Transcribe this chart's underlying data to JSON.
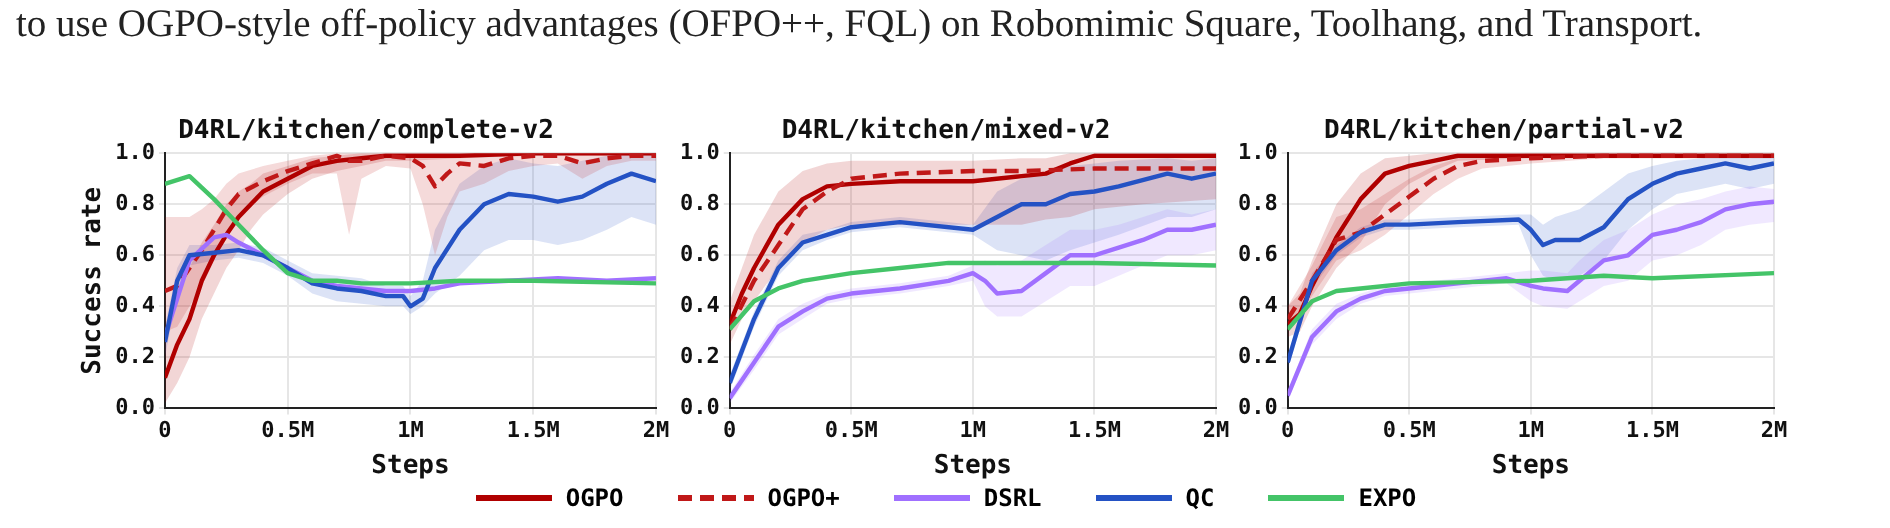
{
  "chart_data": [
    {
      "type": "line",
      "title": "D4RL/kitchen/complete-v2",
      "xlabel": "Steps",
      "ylabel": "Success rate",
      "legend": "bottom",
      "annotations": [
        "to use OGPO-style off-policy advantages (OFPO++, FQL) on Robomimic Square, Toolhang, and Transport."
      ],
      "xlim": [
        0,
        2
      ],
      "xticks": [
        {
          "value": 0,
          "label": "0"
        },
        {
          "value": 0.5,
          "label": "0.5M"
        },
        {
          "value": 1,
          "label": "1M"
        },
        {
          "value": 1.5,
          "label": "1.5M"
        },
        {
          "value": 2,
          "label": "2M"
        }
      ],
      "ylim": [
        0,
        1
      ],
      "yticks": [
        {
          "value": 0,
          "label": "0.0"
        },
        {
          "value": 0.2,
          "label": "0.2"
        },
        {
          "value": 0.4,
          "label": "0.4"
        },
        {
          "value": 0.6,
          "label": "0.6"
        },
        {
          "value": 0.8,
          "label": "0.8"
        },
        {
          "value": 1,
          "label": "1.0"
        }
      ],
      "grid": true,
      "marker": "none",
      "series": [
        {
          "name": "OGPO",
          "color": "#b00000",
          "x": [
            0,
            0.05,
            0.1,
            0.15,
            0.2,
            0.25,
            0.3,
            0.35,
            0.4,
            0.5,
            0.6,
            0.7,
            0.8,
            0.9,
            1,
            1.2,
            1.5,
            2
          ],
          "values": [
            0.12,
            0.25,
            0.35,
            0.5,
            0.6,
            0.68,
            0.75,
            0.8,
            0.85,
            0.9,
            0.95,
            0.97,
            0.98,
            0.99,
            0.99,
            0.99,
            1.0,
            1.0
          ],
          "lower": [
            0.02,
            0.1,
            0.2,
            0.35,
            0.45,
            0.55,
            0.62,
            0.7,
            0.76,
            0.84,
            0.9,
            0.93,
            0.95,
            0.97,
            0.97,
            0.98,
            0.99,
            0.99
          ],
          "upper": [
            0.3,
            0.45,
            0.55,
            0.65,
            0.72,
            0.8,
            0.85,
            0.88,
            0.92,
            0.95,
            0.98,
            0.99,
            1.0,
            1.0,
            1.0,
            1.0,
            1.0,
            1.0
          ]
        },
        {
          "name": "OGPO+",
          "color": "#c01818",
          "line_style": "dashed",
          "x": [
            0,
            0.05,
            0.1,
            0.15,
            0.2,
            0.25,
            0.3,
            0.4,
            0.5,
            0.6,
            0.7,
            0.75,
            0.8,
            0.9,
            1,
            1.05,
            1.1,
            1.15,
            1.2,
            1.3,
            1.4,
            1.5,
            1.6,
            1.7,
            1.8,
            1.9,
            2
          ],
          "values": [
            0.46,
            0.48,
            0.55,
            0.62,
            0.7,
            0.78,
            0.84,
            0.89,
            0.93,
            0.96,
            0.99,
            0.97,
            0.97,
            0.99,
            0.98,
            0.95,
            0.87,
            0.92,
            0.96,
            0.95,
            0.98,
            0.99,
            0.99,
            0.96,
            0.98,
            0.99,
            0.99
          ],
          "lower": [
            0.3,
            0.32,
            0.4,
            0.48,
            0.58,
            0.68,
            0.76,
            0.83,
            0.88,
            0.92,
            0.92,
            0.68,
            0.9,
            0.95,
            0.94,
            0.8,
            0.6,
            0.75,
            0.85,
            0.88,
            0.93,
            0.95,
            0.96,
            0.9,
            0.95,
            0.97,
            0.97
          ],
          "upper": [
            0.75,
            0.75,
            0.75,
            0.78,
            0.82,
            0.88,
            0.92,
            0.95,
            0.97,
            0.99,
            1.0,
            1.0,
            1.0,
            1.0,
            1.0,
            1.0,
            1.0,
            1.0,
            1.0,
            1.0,
            1.0,
            1.0,
            1.0,
            1.0,
            1.0,
            1.0,
            1.0
          ]
        },
        {
          "name": "DSRL",
          "color": "#a070ff",
          "x": [
            0,
            0.1,
            0.2,
            0.25,
            0.3,
            0.4,
            0.5,
            0.6,
            0.7,
            0.8,
            0.9,
            1,
            1.1,
            1.2,
            1.4,
            1.6,
            1.8,
            2
          ],
          "values": [
            0.28,
            0.58,
            0.67,
            0.68,
            0.65,
            0.6,
            0.55,
            0.5,
            0.48,
            0.47,
            0.46,
            0.46,
            0.47,
            0.49,
            0.5,
            0.51,
            0.5,
            0.51
          ]
        },
        {
          "name": "QC",
          "color": "#2452c4",
          "x": [
            0,
            0.05,
            0.1,
            0.2,
            0.3,
            0.4,
            0.5,
            0.6,
            0.7,
            0.8,
            0.9,
            0.97,
            1,
            1.05,
            1.1,
            1.2,
            1.3,
            1.4,
            1.5,
            1.6,
            1.7,
            1.8,
            1.9,
            2
          ],
          "values": [
            0.26,
            0.5,
            0.6,
            0.61,
            0.62,
            0.6,
            0.55,
            0.49,
            0.47,
            0.46,
            0.44,
            0.44,
            0.4,
            0.43,
            0.55,
            0.7,
            0.8,
            0.84,
            0.83,
            0.81,
            0.83,
            0.88,
            0.92,
            0.89
          ],
          "lower": [
            0.2,
            0.45,
            0.56,
            0.58,
            0.59,
            0.57,
            0.52,
            0.45,
            0.42,
            0.41,
            0.4,
            0.4,
            0.37,
            0.4,
            0.45,
            0.52,
            0.62,
            0.66,
            0.66,
            0.64,
            0.66,
            0.7,
            0.75,
            0.72
          ],
          "upper": [
            0.32,
            0.55,
            0.64,
            0.64,
            0.65,
            0.63,
            0.58,
            0.53,
            0.52,
            0.51,
            0.48,
            0.48,
            0.44,
            0.5,
            0.7,
            0.88,
            0.95,
            0.98,
            0.96,
            0.95,
            0.97,
            0.99,
            1.0,
            1.0
          ]
        },
        {
          "name": "EXPO",
          "color": "#44c468",
          "x": [
            0,
            0.1,
            0.2,
            0.3,
            0.4,
            0.5,
            0.6,
            0.7,
            0.8,
            1,
            1.2,
            1.5,
            2
          ],
          "values": [
            0.88,
            0.91,
            0.82,
            0.72,
            0.62,
            0.53,
            0.5,
            0.5,
            0.49,
            0.49,
            0.5,
            0.5,
            0.49
          ]
        }
      ]
    },
    {
      "type": "line",
      "title": "D4RL/kitchen/mixed-v2",
      "xlabel": "Steps",
      "xlim": [
        0,
        2
      ],
      "xticks": [
        {
          "value": 0,
          "label": "0"
        },
        {
          "value": 0.5,
          "label": "0.5M"
        },
        {
          "value": 1,
          "label": "1M"
        },
        {
          "value": 1.5,
          "label": "1.5M"
        },
        {
          "value": 2,
          "label": "2M"
        }
      ],
      "ylim": [
        0,
        1
      ],
      "yticks": [
        {
          "value": 0,
          "label": "0.0"
        },
        {
          "value": 0.2,
          "label": "0.2"
        },
        {
          "value": 0.4,
          "label": "0.4"
        },
        {
          "value": 0.6,
          "label": "0.6"
        },
        {
          "value": 0.8,
          "label": "0.8"
        },
        {
          "value": 1,
          "label": "1.0"
        }
      ],
      "grid": true,
      "marker": "none",
      "series": [
        {
          "color": "#b00000",
          "x": [
            0,
            0.05,
            0.1,
            0.2,
            0.3,
            0.4,
            0.5,
            0.7,
            1,
            1.2,
            1.3,
            1.4,
            1.5,
            1.7,
            2
          ],
          "values": [
            0.33,
            0.45,
            0.55,
            0.72,
            0.82,
            0.87,
            0.88,
            0.89,
            0.89,
            0.91,
            0.92,
            0.96,
            0.99,
            0.99,
            0.99
          ],
          "lower": [
            0.25,
            0.35,
            0.42,
            0.55,
            0.65,
            0.7,
            0.72,
            0.72,
            0.72,
            0.72,
            0.74,
            0.75,
            0.78,
            0.8,
            0.82
          ],
          "upper": [
            0.42,
            0.55,
            0.68,
            0.85,
            0.93,
            0.96,
            0.97,
            0.97,
            0.97,
            0.98,
            0.98,
            1.0,
            1.0,
            1.0,
            1.0
          ]
        },
        {
          "color": "#c01818",
          "line_style": "dashed",
          "x": [
            0,
            0.1,
            0.2,
            0.3,
            0.4,
            0.5,
            0.7,
            1,
            1.2,
            1.5,
            1.8,
            2
          ],
          "values": [
            0.31,
            0.5,
            0.64,
            0.78,
            0.85,
            0.9,
            0.92,
            0.93,
            0.93,
            0.94,
            0.94,
            0.94
          ]
        },
        {
          "color": "#a070ff",
          "x": [
            0,
            0.1,
            0.2,
            0.3,
            0.4,
            0.5,
            0.7,
            0.9,
            1,
            1.05,
            1.1,
            1.2,
            1.3,
            1.4,
            1.5,
            1.6,
            1.7,
            1.8,
            1.9,
            2
          ],
          "values": [
            0.04,
            0.18,
            0.32,
            0.38,
            0.43,
            0.45,
            0.47,
            0.5,
            0.53,
            0.5,
            0.45,
            0.46,
            0.53,
            0.6,
            0.6,
            0.63,
            0.66,
            0.7,
            0.7,
            0.72
          ],
          "lower": [
            0.02,
            0.15,
            0.29,
            0.35,
            0.41,
            0.43,
            0.45,
            0.48,
            0.5,
            0.4,
            0.36,
            0.36,
            0.42,
            0.48,
            0.48,
            0.52,
            0.56,
            0.6,
            0.6,
            0.62
          ],
          "upper": [
            0.06,
            0.21,
            0.35,
            0.41,
            0.45,
            0.47,
            0.49,
            0.52,
            0.56,
            0.58,
            0.56,
            0.58,
            0.64,
            0.7,
            0.7,
            0.72,
            0.75,
            0.78,
            0.76,
            0.78
          ]
        },
        {
          "color": "#2452c4",
          "x": [
            0,
            0.1,
            0.2,
            0.3,
            0.4,
            0.5,
            0.7,
            1,
            1.1,
            1.2,
            1.3,
            1.4,
            1.5,
            1.6,
            1.8,
            1.9,
            2
          ],
          "values": [
            0.1,
            0.35,
            0.55,
            0.65,
            0.68,
            0.71,
            0.73,
            0.7,
            0.75,
            0.8,
            0.8,
            0.84,
            0.85,
            0.87,
            0.92,
            0.9,
            0.92
          ],
          "lower": [
            0.07,
            0.32,
            0.52,
            0.62,
            0.66,
            0.69,
            0.71,
            0.68,
            0.62,
            0.6,
            0.58,
            0.62,
            0.65,
            0.68,
            0.75,
            0.75,
            0.78
          ],
          "upper": [
            0.13,
            0.38,
            0.58,
            0.68,
            0.7,
            0.73,
            0.75,
            0.72,
            0.85,
            0.9,
            0.92,
            0.95,
            0.96,
            0.97,
            0.98,
            0.97,
            0.98
          ]
        },
        {
          "color": "#44c468",
          "x": [
            0,
            0.1,
            0.2,
            0.3,
            0.5,
            0.7,
            0.9,
            1,
            1.5,
            2
          ],
          "values": [
            0.31,
            0.42,
            0.47,
            0.5,
            0.53,
            0.55,
            0.57,
            0.57,
            0.57,
            0.56
          ]
        }
      ]
    },
    {
      "type": "line",
      "title": "D4RL/kitchen/partial-v2",
      "xlabel": "Steps",
      "xlim": [
        0,
        2
      ],
      "xticks": [
        {
          "value": 0,
          "label": "0"
        },
        {
          "value": 0.5,
          "label": "0.5M"
        },
        {
          "value": 1,
          "label": "1M"
        },
        {
          "value": 1.5,
          "label": "1.5M"
        },
        {
          "value": 2,
          "label": "2M"
        }
      ],
      "ylim": [
        0,
        1
      ],
      "yticks": [
        {
          "value": 0,
          "label": "0.0"
        },
        {
          "value": 0.2,
          "label": "0.2"
        },
        {
          "value": 0.4,
          "label": "0.4"
        },
        {
          "value": 0.6,
          "label": "0.6"
        },
        {
          "value": 0.8,
          "label": "0.8"
        },
        {
          "value": 1,
          "label": "1.0"
        }
      ],
      "grid": true,
      "marker": "none",
      "series": [
        {
          "color": "#b00000",
          "x": [
            0,
            0.05,
            0.1,
            0.2,
            0.3,
            0.4,
            0.5,
            0.6,
            0.7,
            1,
            2
          ],
          "values": [
            0.33,
            0.37,
            0.48,
            0.67,
            0.82,
            0.92,
            0.95,
            0.97,
            0.99,
            0.99,
            0.99
          ],
          "lower": [
            0.28,
            0.3,
            0.4,
            0.55,
            0.65,
            0.8,
            0.88,
            0.93,
            0.97,
            0.98,
            0.98
          ],
          "upper": [
            0.4,
            0.45,
            0.58,
            0.8,
            0.92,
            0.98,
            0.99,
            1.0,
            1.0,
            1.0,
            1.0
          ]
        },
        {
          "color": "#c01818",
          "line_style": "dashed",
          "x": [
            0,
            0.1,
            0.2,
            0.3,
            0.4,
            0.5,
            0.6,
            0.7,
            0.8,
            1,
            1.3,
            2
          ],
          "values": [
            0.35,
            0.5,
            0.66,
            0.69,
            0.76,
            0.83,
            0.9,
            0.95,
            0.97,
            0.98,
            0.99,
            0.99
          ],
          "lower": [
            0.3,
            0.44,
            0.58,
            0.62,
            0.68,
            0.76,
            0.84,
            0.9,
            0.94,
            0.96,
            0.98,
            0.98
          ],
          "upper": [
            0.4,
            0.56,
            0.75,
            0.78,
            0.84,
            0.9,
            0.95,
            0.98,
            0.99,
            1.0,
            1.0,
            1.0
          ]
        },
        {
          "color": "#a070ff",
          "x": [
            0,
            0.1,
            0.2,
            0.3,
            0.4,
            0.5,
            0.7,
            0.9,
            1,
            1.05,
            1.15,
            1.2,
            1.3,
            1.4,
            1.5,
            1.6,
            1.7,
            1.8,
            1.9,
            2
          ],
          "values": [
            0.05,
            0.28,
            0.38,
            0.43,
            0.46,
            0.47,
            0.49,
            0.51,
            0.48,
            0.47,
            0.46,
            0.5,
            0.58,
            0.6,
            0.68,
            0.7,
            0.73,
            0.78,
            0.8,
            0.81
          ],
          "lower": [
            0.03,
            0.25,
            0.35,
            0.41,
            0.44,
            0.45,
            0.47,
            0.49,
            0.42,
            0.4,
            0.39,
            0.42,
            0.48,
            0.5,
            0.58,
            0.6,
            0.64,
            0.7,
            0.72,
            0.73
          ],
          "upper": [
            0.07,
            0.31,
            0.41,
            0.45,
            0.48,
            0.49,
            0.51,
            0.53,
            0.54,
            0.54,
            0.53,
            0.58,
            0.66,
            0.7,
            0.76,
            0.8,
            0.82,
            0.85,
            0.87,
            0.86
          ]
        },
        {
          "color": "#2452c4",
          "x": [
            0,
            0.1,
            0.2,
            0.3,
            0.4,
            0.5,
            0.7,
            0.95,
            1,
            1.05,
            1.1,
            1.2,
            1.3,
            1.4,
            1.5,
            1.6,
            1.7,
            1.8,
            1.9,
            2
          ],
          "values": [
            0.18,
            0.5,
            0.62,
            0.69,
            0.72,
            0.72,
            0.73,
            0.74,
            0.7,
            0.64,
            0.66,
            0.66,
            0.71,
            0.82,
            0.88,
            0.92,
            0.94,
            0.96,
            0.94,
            0.96
          ],
          "lower": [
            0.15,
            0.47,
            0.6,
            0.67,
            0.7,
            0.7,
            0.71,
            0.72,
            0.6,
            0.52,
            0.5,
            0.52,
            0.58,
            0.7,
            0.78,
            0.84,
            0.86,
            0.88,
            0.86,
            0.88
          ],
          "upper": [
            0.21,
            0.53,
            0.64,
            0.71,
            0.74,
            0.74,
            0.75,
            0.76,
            0.76,
            0.72,
            0.75,
            0.78,
            0.85,
            0.92,
            0.95,
            0.97,
            0.98,
            0.99,
            0.98,
            0.99
          ]
        },
        {
          "color": "#44c468",
          "x": [
            0,
            0.1,
            0.2,
            0.3,
            0.5,
            1,
            1.3,
            1.5,
            2
          ],
          "values": [
            0.31,
            0.42,
            0.46,
            0.47,
            0.49,
            0.5,
            0.52,
            0.51,
            0.53
          ]
        }
      ]
    }
  ]
}
